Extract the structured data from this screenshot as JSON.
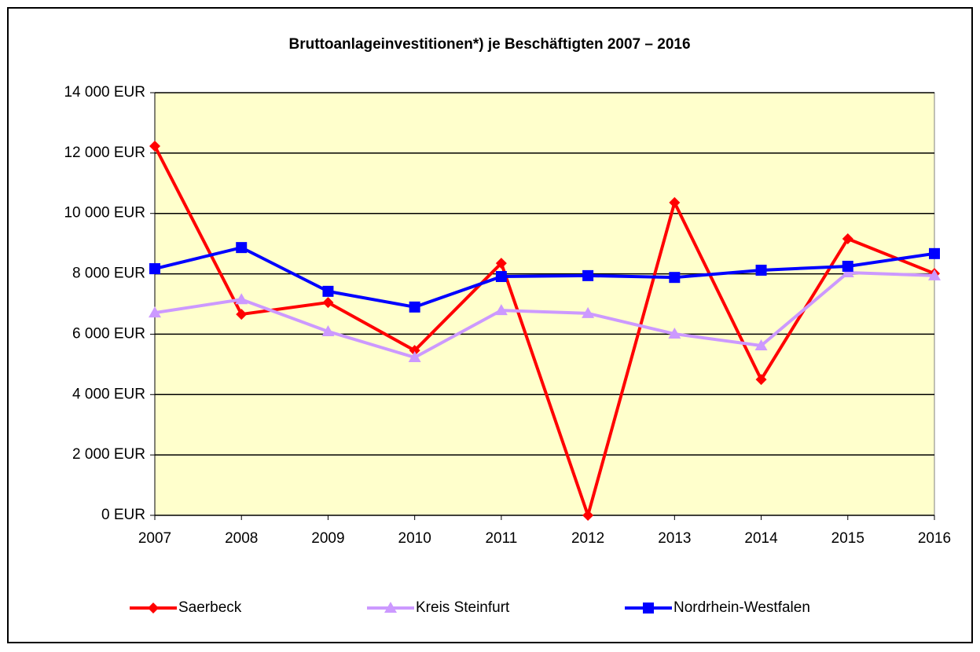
{
  "chart_data": {
    "type": "line",
    "title": "Bruttoanlageinvestitionen*) je Beschäftigten 2007 – 2016",
    "categories": [
      "2007",
      "2008",
      "2009",
      "2010",
      "2011",
      "2012",
      "2013",
      "2014",
      "2015",
      "2016"
    ],
    "series": [
      {
        "name": "Saerbeck",
        "color": "#ff0000",
        "marker": "diamond",
        "values": [
          12230,
          6660,
          7050,
          5460,
          8350,
          0,
          10360,
          4500,
          9160,
          8010
        ]
      },
      {
        "name": "Kreis Steinfurt",
        "color": "#cc99ff",
        "marker": "triangle",
        "values": [
          6710,
          7150,
          6090,
          5230,
          6790,
          6690,
          6010,
          5620,
          8040,
          7940
        ]
      },
      {
        "name": "Nordrhein-Westfalen",
        "color": "#0000ff",
        "marker": "square",
        "values": [
          8170,
          8870,
          7420,
          6900,
          7910,
          7940,
          7880,
          8120,
          8250,
          8670
        ]
      }
    ],
    "ylim": [
      0,
      14000
    ],
    "yticks": [
      {
        "value": 0,
        "label": "0 EUR"
      },
      {
        "value": 2000,
        "label": "2 000 EUR"
      },
      {
        "value": 4000,
        "label": "4 000 EUR"
      },
      {
        "value": 6000,
        "label": "6 000 EUR"
      },
      {
        "value": 8000,
        "label": "8 000 EUR"
      },
      {
        "value": 10000,
        "label": "10 000 EUR"
      },
      {
        "value": 12000,
        "label": "12 000 EUR"
      },
      {
        "value": 14000,
        "label": "14 000 EUR"
      }
    ],
    "grid": true,
    "plot_background": "#ffffcc",
    "legend": "bottom"
  }
}
